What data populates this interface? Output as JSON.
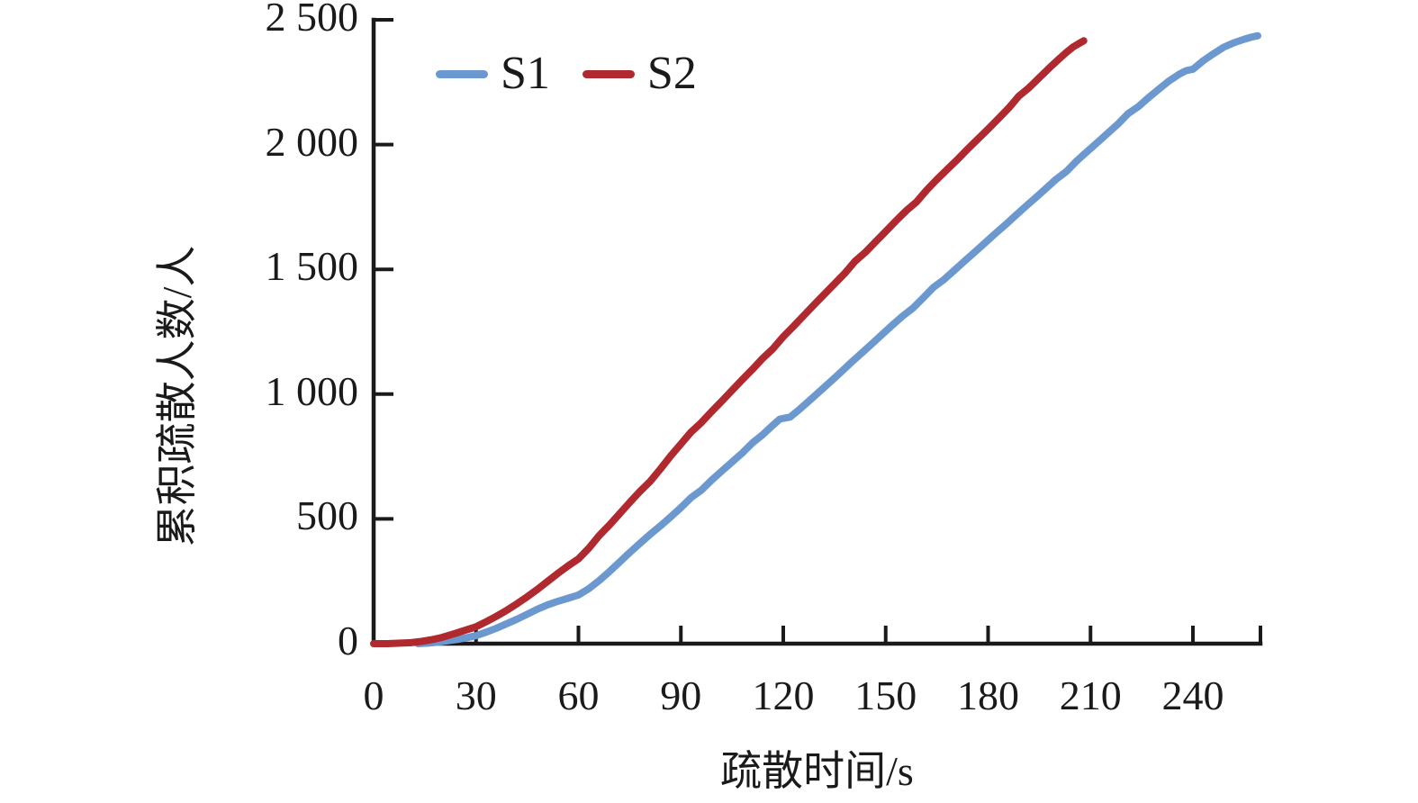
{
  "figure_title": "",
  "legend": {
    "position": "top-left-inside"
  },
  "chart_data": {
    "type": "line",
    "title": "",
    "xlabel": "疏散时间/s",
    "ylabel": "累积疏散人数/人",
    "xlim": [
      0,
      260
    ],
    "ylim": [
      0,
      2500
    ],
    "grid": false,
    "axis_color": "#1a1a1a",
    "x_ticks": {
      "values": [
        0,
        30,
        60,
        90,
        120,
        150,
        180,
        210,
        240
      ],
      "labels": [
        "0",
        "30",
        "60",
        "90",
        "120",
        "150",
        "180",
        "210",
        "240"
      ]
    },
    "y_ticks": {
      "values": [
        0,
        500,
        1000,
        1500,
        2000,
        2500
      ],
      "labels": [
        "0",
        "500",
        "1 000",
        "1 500",
        "2 000",
        "2 500"
      ]
    },
    "series": [
      {
        "name": "S1",
        "color": "#6C98D0",
        "points": [
          [
            13,
            0
          ],
          [
            16,
            2
          ],
          [
            19,
            6
          ],
          [
            22,
            12
          ],
          [
            25,
            18
          ],
          [
            28,
            26
          ],
          [
            30,
            32
          ],
          [
            33,
            46
          ],
          [
            36,
            62
          ],
          [
            39,
            80
          ],
          [
            42,
            98
          ],
          [
            45,
            118
          ],
          [
            48,
            138
          ],
          [
            51,
            156
          ],
          [
            54,
            170
          ],
          [
            57,
            182
          ],
          [
            60,
            195
          ],
          [
            63,
            220
          ],
          [
            66,
            252
          ],
          [
            69,
            288
          ],
          [
            72,
            326
          ],
          [
            75,
            365
          ],
          [
            78,
            402
          ],
          [
            81,
            438
          ],
          [
            84,
            472
          ],
          [
            87,
            508
          ],
          [
            90,
            545
          ],
          [
            93,
            585
          ],
          [
            96,
            615
          ],
          [
            99,
            655
          ],
          [
            102,
            692
          ],
          [
            105,
            728
          ],
          [
            108,
            764
          ],
          [
            111,
            805
          ],
          [
            114,
            838
          ],
          [
            117,
            876
          ],
          [
            119,
            900
          ],
          [
            122,
            908
          ],
          [
            125,
            942
          ],
          [
            128,
            978
          ],
          [
            131,
            1015
          ],
          [
            134,
            1052
          ],
          [
            137,
            1090
          ],
          [
            140,
            1128
          ],
          [
            143,
            1165
          ],
          [
            146,
            1202
          ],
          [
            149,
            1240
          ],
          [
            152,
            1277
          ],
          [
            155,
            1313
          ],
          [
            158,
            1345
          ],
          [
            161,
            1386
          ],
          [
            164,
            1428
          ],
          [
            167,
            1458
          ],
          [
            170,
            1495
          ],
          [
            173,
            1532
          ],
          [
            176,
            1568
          ],
          [
            179,
            1605
          ],
          [
            182,
            1642
          ],
          [
            185,
            1678
          ],
          [
            188,
            1715
          ],
          [
            191,
            1752
          ],
          [
            194,
            1788
          ],
          [
            197,
            1825
          ],
          [
            200,
            1862
          ],
          [
            203,
            1893
          ],
          [
            206,
            1935
          ],
          [
            209,
            1972
          ],
          [
            212,
            2008
          ],
          [
            215,
            2045
          ],
          [
            218,
            2082
          ],
          [
            221,
            2124
          ],
          [
            224,
            2152
          ],
          [
            227,
            2188
          ],
          [
            230,
            2222
          ],
          [
            233,
            2255
          ],
          [
            236,
            2282
          ],
          [
            238,
            2296
          ],
          [
            240,
            2302
          ],
          [
            243,
            2336
          ],
          [
            246,
            2364
          ],
          [
            249,
            2390
          ],
          [
            252,
            2408
          ],
          [
            255,
            2422
          ],
          [
            257,
            2430
          ],
          [
            259,
            2436
          ]
        ]
      },
      {
        "name": "S2",
        "color": "#B0292F",
        "points": [
          [
            0,
            0
          ],
          [
            4,
            0
          ],
          [
            8,
            2
          ],
          [
            11,
            4
          ],
          [
            14,
            9
          ],
          [
            17,
            16
          ],
          [
            20,
            25
          ],
          [
            23,
            37
          ],
          [
            26,
            50
          ],
          [
            29,
            63
          ],
          [
            30,
            68
          ],
          [
            33,
            88
          ],
          [
            36,
            110
          ],
          [
            39,
            134
          ],
          [
            42,
            160
          ],
          [
            45,
            188
          ],
          [
            48,
            218
          ],
          [
            51,
            250
          ],
          [
            54,
            282
          ],
          [
            57,
            312
          ],
          [
            60,
            340
          ],
          [
            63,
            382
          ],
          [
            66,
            432
          ],
          [
            69,
            474
          ],
          [
            72,
            520
          ],
          [
            75,
            566
          ],
          [
            78,
            610
          ],
          [
            81,
            650
          ],
          [
            84,
            700
          ],
          [
            87,
            752
          ],
          [
            90,
            800
          ],
          [
            93,
            848
          ],
          [
            96,
            886
          ],
          [
            99,
            930
          ],
          [
            102,
            972
          ],
          [
            105,
            1015
          ],
          [
            108,
            1058
          ],
          [
            111,
            1100
          ],
          [
            114,
            1144
          ],
          [
            117,
            1182
          ],
          [
            120,
            1230
          ],
          [
            123,
            1272
          ],
          [
            126,
            1315
          ],
          [
            129,
            1358
          ],
          [
            132,
            1400
          ],
          [
            135,
            1442
          ],
          [
            138,
            1484
          ],
          [
            141,
            1532
          ],
          [
            144,
            1568
          ],
          [
            147,
            1610
          ],
          [
            150,
            1652
          ],
          [
            153,
            1694
          ],
          [
            156,
            1735
          ],
          [
            159,
            1770
          ],
          [
            162,
            1818
          ],
          [
            165,
            1860
          ],
          [
            168,
            1900
          ],
          [
            171,
            1940
          ],
          [
            174,
            1982
          ],
          [
            177,
            2022
          ],
          [
            180,
            2062
          ],
          [
            183,
            2104
          ],
          [
            186,
            2146
          ],
          [
            189,
            2194
          ],
          [
            192,
            2228
          ],
          [
            195,
            2268
          ],
          [
            198,
            2308
          ],
          [
            201,
            2346
          ],
          [
            203,
            2370
          ],
          [
            205,
            2392
          ],
          [
            207,
            2408
          ],
          [
            208,
            2416
          ]
        ]
      }
    ]
  }
}
